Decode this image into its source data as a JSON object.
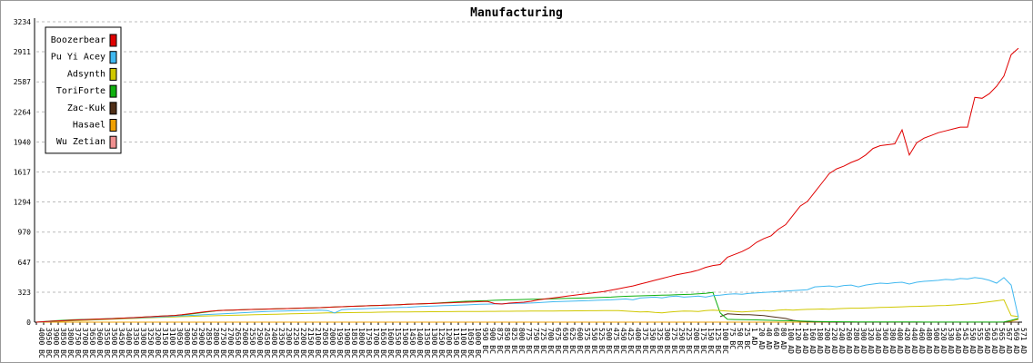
{
  "chart_data": {
    "type": "line",
    "title": "Manufacturing",
    "categories": [
      "4000 BC",
      "3950 BC",
      "3900 BC",
      "3850 BC",
      "3800 BC",
      "3750 BC",
      "3700 BC",
      "3650 BC",
      "3600 BC",
      "3550 BC",
      "3500 BC",
      "3450 BC",
      "3400 BC",
      "3350 BC",
      "3300 BC",
      "3250 BC",
      "3200 BC",
      "3150 BC",
      "3100 BC",
      "3050 BC",
      "3000 BC",
      "2950 BC",
      "2900 BC",
      "2850 BC",
      "2800 BC",
      "2750 BC",
      "2700 BC",
      "2650 BC",
      "2600 BC",
      "2550 BC",
      "2500 BC",
      "2450 BC",
      "2400 BC",
      "2350 BC",
      "2300 BC",
      "2250 BC",
      "2200 BC",
      "2150 BC",
      "2100 BC",
      "2050 BC",
      "2000 BC",
      "1950 BC",
      "1900 BC",
      "1850 BC",
      "1800 BC",
      "1750 BC",
      "1700 BC",
      "1650 BC",
      "1600 BC",
      "1550 BC",
      "1500 BC",
      "1450 BC",
      "1400 BC",
      "1350 BC",
      "1300 BC",
      "1250 BC",
      "1200 BC",
      "1150 BC",
      "1100 BC",
      "1050 BC",
      "1000 BC",
      "950 BC",
      "900 BC",
      "875 BC",
      "850 BC",
      "825 BC",
      "800 BC",
      "775 BC",
      "750 BC",
      "725 BC",
      "700 BC",
      "675 BC",
      "650 BC",
      "625 BC",
      "600 BC",
      "575 BC",
      "550 BC",
      "525 BC",
      "500 BC",
      "475 BC",
      "450 BC",
      "425 BC",
      "400 BC",
      "375 BC",
      "350 BC",
      "325 BC",
      "300 BC",
      "275 BC",
      "250 BC",
      "225 BC",
      "200 BC",
      "175 BC",
      "150 BC",
      "125 BC",
      "100 BC",
      "75 BC",
      "50 BC",
      "25 BC",
      "1 AD",
      "20 AD",
      "40 AD",
      "60 AD",
      "80 AD",
      "100 AD",
      "120 AD",
      "140 AD",
      "160 AD",
      "180 AD",
      "200 AD",
      "220 AD",
      "240 AD",
      "260 AD",
      "280 AD",
      "300 AD",
      "320 AD",
      "340 AD",
      "360 AD",
      "380 AD",
      "400 AD",
      "420 AD",
      "440 AD",
      "460 AD",
      "480 AD",
      "500 AD",
      "520 AD",
      "530 AD",
      "540 AD",
      "545 AD",
      "550 AD",
      "555 AD",
      "560 AD",
      "563 AD",
      "565 AD",
      "567 AD",
      "569 AD",
      "571 AD"
    ],
    "series": [
      {
        "name": "Boozerbear",
        "color": "#e00000",
        "values": [
          0,
          5,
          10,
          14,
          18,
          22,
          25,
          28,
          31,
          34,
          37,
          40,
          44,
          48,
          52,
          56,
          60,
          64,
          68,
          72,
          80,
          90,
          100,
          110,
          118,
          125,
          128,
          130,
          133,
          136,
          138,
          140,
          142,
          144,
          146,
          148,
          150,
          152,
          154,
          156,
          160,
          163,
          166,
          170,
          172,
          175,
          178,
          180,
          183,
          186,
          189,
          192,
          195,
          198,
          200,
          203,
          206,
          209,
          212,
          215,
          218,
          221,
          224,
          200,
          195,
          205,
          210,
          215,
          225,
          240,
          250,
          260,
          270,
          280,
          290,
          300,
          310,
          320,
          330,
          345,
          360,
          375,
          390,
          410,
          430,
          450,
          470,
          490,
          510,
          525,
          540,
          560,
          590,
          610,
          620,
          700,
          730,
          760,
          800,
          860,
          900,
          930,
          1000,
          1050,
          1150,
          1250,
          1300,
          1400,
          1500,
          1600,
          1650,
          1680,
          1720,
          1750,
          1800,
          1870,
          1900,
          1910,
          1920,
          2070,
          1800,
          1930,
          1980,
          2010,
          2040,
          2060,
          2080,
          2100,
          2100,
          2420,
          2410,
          2460,
          2540,
          2650,
          2880,
          2950
        ]
      },
      {
        "name": "Pu Yi Acey",
        "color": "#40b8f0",
        "values": [
          0,
          4,
          8,
          12,
          16,
          20,
          23,
          26,
          29,
          32,
          35,
          38,
          41,
          44,
          47,
          50,
          53,
          56,
          60,
          64,
          68,
          72,
          76,
          80,
          84,
          88,
          92,
          96,
          100,
          104,
          108,
          112,
          116,
          118,
          120,
          122,
          124,
          126,
          128,
          130,
          125,
          100,
          135,
          140,
          142,
          145,
          148,
          150,
          152,
          155,
          158,
          160,
          165,
          170,
          172,
          175,
          178,
          180,
          183,
          186,
          190,
          192,
          194,
          196,
          198,
          200,
          202,
          204,
          206,
          210,
          215,
          220,
          222,
          225,
          228,
          230,
          232,
          235,
          238,
          240,
          245,
          250,
          240,
          260,
          265,
          270,
          262,
          275,
          280,
          270,
          275,
          280,
          270,
          285,
          290,
          300,
          305,
          300,
          310,
          315,
          320,
          325,
          330,
          335,
          340,
          345,
          350,
          380,
          385,
          390,
          380,
          395,
          400,
          380,
          400,
          410,
          420,
          415,
          425,
          430,
          410,
          430,
          440,
          445,
          450,
          460,
          455,
          470,
          465,
          480,
          470,
          450,
          420,
          480,
          400,
          50
        ]
      },
      {
        "name": "Adsynth",
        "color": "#d0c800",
        "values": [
          0,
          3,
          6,
          9,
          12,
          15,
          18,
          21,
          24,
          27,
          30,
          33,
          36,
          39,
          42,
          45,
          48,
          51,
          54,
          57,
          60,
          62,
          64,
          66,
          68,
          70,
          72,
          74,
          76,
          78,
          80,
          82,
          84,
          86,
          88,
          90,
          92,
          94,
          96,
          98,
          100,
          101,
          102,
          103,
          104,
          105,
          106,
          107,
          108,
          109,
          110,
          110,
          111,
          111,
          112,
          112,
          113,
          113,
          114,
          114,
          115,
          115,
          116,
          116,
          117,
          117,
          118,
          118,
          119,
          119,
          120,
          120,
          121,
          121,
          122,
          122,
          123,
          123,
          124,
          124,
          125,
          120,
          115,
          110,
          112,
          105,
          100,
          108,
          115,
          120,
          118,
          115,
          125,
          130,
          125,
          120,
          115,
          110,
          115,
          120,
          125,
          120,
          130,
          135,
          130,
          135,
          138,
          140,
          142,
          140,
          145,
          148,
          150,
          150,
          152,
          155,
          158,
          160,
          162,
          165,
          168,
          170,
          172,
          175,
          178,
          180,
          185,
          190,
          195,
          200,
          210,
          220,
          230,
          240,
          70,
          60
        ]
      },
      {
        "name": "ToriForte",
        "color": "#10b010",
        "values": [
          0,
          6,
          12,
          18,
          22,
          25,
          28,
          30,
          32,
          35,
          38,
          41,
          44,
          48,
          52,
          56,
          60,
          64,
          68,
          72,
          78,
          85,
          95,
          105,
          115,
          125,
          128,
          130,
          133,
          136,
          138,
          140,
          142,
          144,
          146,
          148,
          150,
          152,
          154,
          156,
          160,
          163,
          166,
          170,
          172,
          175,
          178,
          180,
          183,
          186,
          189,
          192,
          195,
          198,
          200,
          205,
          210,
          215,
          220,
          225,
          228,
          230,
          232,
          235,
          238,
          240,
          242,
          244,
          246,
          248,
          250,
          252,
          254,
          256,
          258,
          260,
          262,
          265,
          268,
          270,
          275,
          278,
          280,
          283,
          286,
          288,
          290,
          292,
          295,
          298,
          300,
          305,
          310,
          320,
          100,
          30,
          28,
          26,
          25,
          24,
          22,
          20,
          18,
          16,
          14,
          12,
          10,
          8,
          6,
          5,
          5,
          4,
          4,
          3,
          3,
          2,
          2,
          2,
          2,
          2,
          2,
          2,
          1,
          1,
          1,
          1,
          1,
          1,
          1,
          1,
          1,
          1,
          1,
          2,
          20,
          40
        ]
      },
      {
        "name": "Zac-Kuk",
        "color": "#503018",
        "values": [
          null,
          null,
          null,
          null,
          null,
          null,
          null,
          null,
          null,
          null,
          null,
          null,
          null,
          null,
          null,
          null,
          null,
          null,
          null,
          null,
          null,
          null,
          null,
          null,
          null,
          null,
          null,
          null,
          null,
          null,
          null,
          null,
          null,
          null,
          null,
          null,
          null,
          null,
          null,
          null,
          null,
          null,
          null,
          null,
          null,
          null,
          null,
          null,
          null,
          null,
          null,
          null,
          null,
          null,
          null,
          null,
          null,
          null,
          null,
          null,
          null,
          null,
          null,
          null,
          null,
          null,
          null,
          null,
          null,
          null,
          null,
          null,
          null,
          null,
          null,
          null,
          null,
          null,
          null,
          null,
          null,
          null,
          null,
          null,
          null,
          null,
          null,
          null,
          null,
          null,
          null,
          null,
          null,
          null,
          60,
          90,
          85,
          80,
          80,
          75,
          70,
          60,
          50,
          40,
          20,
          10,
          5,
          3,
          2,
          1,
          0,
          0,
          0,
          0,
          0,
          0,
          0,
          0,
          0,
          0,
          0,
          0,
          0,
          0,
          0,
          0,
          0,
          0,
          0,
          0,
          0,
          0,
          0,
          0,
          0,
          0
        ]
      },
      {
        "name": "Hasael",
        "color": "#f0a000",
        "values": [
          0,
          0,
          0,
          0,
          0,
          0,
          0,
          0,
          0,
          0,
          0,
          0,
          0,
          0,
          0,
          0,
          0,
          0,
          0,
          0,
          0,
          0,
          0,
          0,
          0,
          0,
          0,
          0,
          0,
          0,
          0,
          0,
          0,
          0,
          0,
          0,
          0,
          0,
          0,
          0,
          0,
          0,
          0,
          0,
          0,
          0,
          0,
          0,
          0,
          0,
          0,
          0,
          0,
          0,
          0,
          0,
          0,
          0,
          0,
          0,
          0,
          0,
          0,
          0,
          0,
          0,
          0,
          0,
          0,
          0,
          0,
          0,
          0,
          0,
          0,
          0,
          0,
          0,
          0,
          0,
          0,
          0,
          0,
          0,
          0,
          0,
          0,
          0,
          0,
          0,
          0,
          0,
          0,
          0,
          0,
          0,
          0,
          0,
          0,
          0,
          0,
          0,
          0,
          0,
          0,
          0,
          0,
          0,
          0,
          0,
          0,
          0,
          0,
          0,
          0,
          0,
          0,
          0,
          0,
          0,
          0,
          0,
          0,
          0,
          0,
          0,
          0,
          0,
          0,
          0,
          0,
          0,
          0,
          0,
          10,
          30
        ]
      },
      {
        "name": "Wu Zetian",
        "color": "#f09090",
        "values": [
          0,
          0,
          0,
          0,
          0,
          0,
          0,
          0,
          0,
          0,
          0,
          0,
          0,
          0,
          0,
          0,
          0,
          0,
          0,
          0,
          0,
          0,
          0,
          0,
          0,
          0,
          0,
          0,
          0,
          0,
          0,
          0,
          0,
          0,
          0,
          0,
          0,
          0,
          0,
          0,
          0,
          0,
          0,
          0,
          0,
          0,
          0,
          0,
          0,
          0,
          0,
          0,
          0,
          0,
          0,
          0,
          0,
          0,
          0,
          0,
          0,
          0,
          0,
          0,
          0,
          0,
          0,
          0,
          0,
          0,
          0,
          0,
          0,
          0,
          0,
          0,
          0,
          0,
          0,
          0,
          0,
          0,
          0,
          0,
          0,
          0,
          0,
          0,
          0,
          0,
          0,
          0,
          0,
          0,
          0,
          0,
          0,
          0,
          0,
          0,
          0,
          0,
          0,
          0,
          0,
          0,
          0,
          0,
          0,
          0,
          0,
          0,
          0,
          0,
          0,
          0,
          0,
          0,
          0,
          0,
          0,
          0,
          0,
          0,
          0,
          0,
          0,
          0,
          0,
          0,
          0,
          0,
          0,
          0,
          0,
          0
        ]
      }
    ],
    "ylim": [
      0,
      3234
    ],
    "yticks": [
      0,
      323,
      647,
      970,
      1294,
      1617,
      1940,
      2264,
      2587,
      2911,
      3234
    ],
    "grid": true,
    "legend": "top-left"
  }
}
